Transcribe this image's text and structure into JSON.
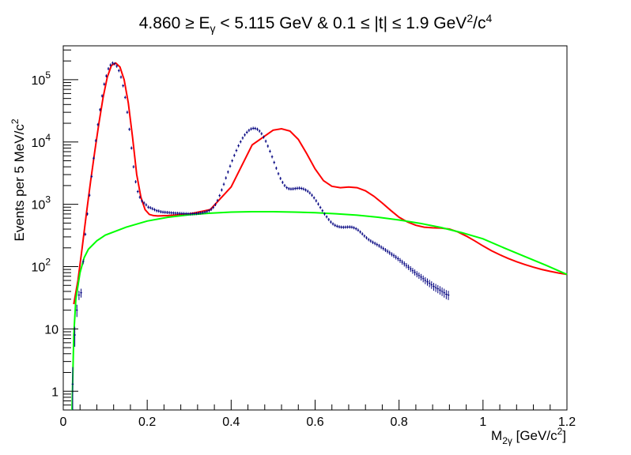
{
  "chart_data": {
    "type": "scatter",
    "title": "4.860 ≥ E_γ < 5.115 GeV  &  0.1 ≤ |t| ≤ 1.9 GeV²/c⁴",
    "title_parts": {
      "a": "4.860 ≥ E",
      "a_sub": "γ",
      "b": " < 5.115 GeV  &  0.1 ≤ |t| ≤ 1.9 GeV",
      "b_sup": "2",
      "c": "/c",
      "c_sup": "4"
    },
    "xlabel": "M_2γ [GeV/c²]",
    "xlabel_parts": {
      "a": "M",
      "a_sub": "2γ",
      "b": " [GeV/c",
      "b_sup": "2",
      "c": "]"
    },
    "ylabel": "Events per 5 MeV/c²",
    "ylabel_parts": {
      "a": "Events per 5 MeV/c",
      "a_sup": "2"
    },
    "xlim": [
      0,
      1.2
    ],
    "ylim": [
      0.5,
      350000
    ],
    "y_scale": "log",
    "x_ticks": [
      {
        "v": 0,
        "label": "0"
      },
      {
        "v": 0.2,
        "label": "0.2"
      },
      {
        "v": 0.4,
        "label": "0.4"
      },
      {
        "v": 0.6,
        "label": "0.6"
      },
      {
        "v": 0.8,
        "label": "0.8"
      },
      {
        "v": 1.0,
        "label": "1"
      },
      {
        "v": 1.2,
        "label": "1.2"
      }
    ],
    "y_ticks": [
      {
        "v": 1,
        "label": "1"
      },
      {
        "v": 10,
        "label": "10"
      },
      {
        "v": 100,
        "label": "10",
        "sup": "2"
      },
      {
        "v": 1000,
        "label": "10",
        "sup": "3"
      },
      {
        "v": 10000,
        "label": "10",
        "sup": "4"
      },
      {
        "v": 100000,
        "label": "10",
        "sup": "5"
      }
    ],
    "series": [
      {
        "type": "points-with-errors",
        "color": "#00007f",
        "points": [
          [
            0.0225,
            1.3
          ],
          [
            0.0275,
            8
          ],
          [
            0.0325,
            20
          ],
          [
            0.0375,
            35
          ],
          [
            0.0425,
            38
          ],
          [
            0.0475,
            120
          ],
          [
            0.0525,
            330
          ],
          [
            0.0575,
            700
          ],
          [
            0.0625,
            1400
          ],
          [
            0.0675,
            2800
          ],
          [
            0.0725,
            5500
          ],
          [
            0.0775,
            10500
          ],
          [
            0.0825,
            19000
          ],
          [
            0.0875,
            33000
          ],
          [
            0.0925,
            55000
          ],
          [
            0.0975,
            85000
          ],
          [
            0.1025,
            115000
          ],
          [
            0.1075,
            150000
          ],
          [
            0.1125,
            172000
          ],
          [
            0.1175,
            185000
          ],
          [
            0.1225,
            180000
          ],
          [
            0.1275,
            165000
          ],
          [
            0.1325,
            140000
          ],
          [
            0.1375,
            110000
          ],
          [
            0.1425,
            80000
          ],
          [
            0.1475,
            52000
          ],
          [
            0.1525,
            30000
          ],
          [
            0.1575,
            16000
          ],
          [
            0.1625,
            8000
          ],
          [
            0.1675,
            4000
          ],
          [
            0.1725,
            2300
          ],
          [
            0.1775,
            1600
          ],
          [
            0.1825,
            1300
          ],
          [
            0.1875,
            1130
          ],
          [
            0.1925,
            1050
          ],
          [
            0.1975,
            980
          ],
          [
            0.2025,
            900
          ],
          [
            0.2075,
            880
          ],
          [
            0.2125,
            850
          ],
          [
            0.2175,
            820
          ],
          [
            0.2225,
            790
          ],
          [
            0.2275,
            780
          ],
          [
            0.2325,
            760
          ],
          [
            0.2375,
            750
          ],
          [
            0.2425,
            745
          ],
          [
            0.2475,
            740
          ],
          [
            0.2525,
            735
          ],
          [
            0.2575,
            730
          ],
          [
            0.2625,
            725
          ],
          [
            0.2675,
            720
          ],
          [
            0.2725,
            718
          ],
          [
            0.2775,
            715
          ],
          [
            0.2825,
            712
          ],
          [
            0.2875,
            710
          ],
          [
            0.2925,
            708
          ],
          [
            0.2975,
            705
          ],
          [
            0.3025,
            702
          ],
          [
            0.3075,
            705
          ],
          [
            0.3125,
            708
          ],
          [
            0.3175,
            712
          ],
          [
            0.3225,
            718
          ],
          [
            0.3275,
            725
          ],
          [
            0.3325,
            735
          ],
          [
            0.3375,
            748
          ],
          [
            0.3425,
            765
          ],
          [
            0.3475,
            790
          ],
          [
            0.3525,
            830
          ],
          [
            0.3575,
            890
          ],
          [
            0.3625,
            990
          ],
          [
            0.3675,
            1150
          ],
          [
            0.3725,
            1380
          ],
          [
            0.3775,
            1700
          ],
          [
            0.3825,
            2100
          ],
          [
            0.3875,
            2650
          ],
          [
            0.3925,
            3300
          ],
          [
            0.3975,
            4100
          ],
          [
            0.4025,
            5000
          ],
          [
            0.4075,
            6100
          ],
          [
            0.4125,
            7300
          ],
          [
            0.4175,
            8700
          ],
          [
            0.4225,
            10100
          ],
          [
            0.4275,
            11600
          ],
          [
            0.4325,
            13000
          ],
          [
            0.4375,
            14300
          ],
          [
            0.4425,
            15400
          ],
          [
            0.4475,
            16200
          ],
          [
            0.4525,
            16600
          ],
          [
            0.4575,
            16500
          ],
          [
            0.4625,
            16000
          ],
          [
            0.4675,
            15000
          ],
          [
            0.4725,
            13600
          ],
          [
            0.4775,
            12000
          ],
          [
            0.4825,
            10300
          ],
          [
            0.4875,
            8600
          ],
          [
            0.4925,
            7100
          ],
          [
            0.4975,
            5800
          ],
          [
            0.5025,
            4700
          ],
          [
            0.5075,
            3800
          ],
          [
            0.5125,
            3100
          ],
          [
            0.5175,
            2600
          ],
          [
            0.5225,
            2250
          ],
          [
            0.5275,
            2000
          ],
          [
            0.5325,
            1850
          ],
          [
            0.5375,
            1780
          ],
          [
            0.5425,
            1760
          ],
          [
            0.5475,
            1770
          ],
          [
            0.5525,
            1790
          ],
          [
            0.5575,
            1810
          ],
          [
            0.5625,
            1820
          ],
          [
            0.5675,
            1800
          ],
          [
            0.5725,
            1760
          ],
          [
            0.5775,
            1700
          ],
          [
            0.5825,
            1620
          ],
          [
            0.5875,
            1520
          ],
          [
            0.5925,
            1400
          ],
          [
            0.5975,
            1270
          ],
          [
            0.6025,
            1140
          ],
          [
            0.6075,
            1010
          ],
          [
            0.6125,
            890
          ],
          [
            0.6175,
            790
          ],
          [
            0.6225,
            700
          ],
          [
            0.6275,
            630
          ],
          [
            0.6325,
            570
          ],
          [
            0.6375,
            520
          ],
          [
            0.6425,
            485
          ],
          [
            0.6475,
            460
          ],
          [
            0.6525,
            445
          ],
          [
            0.6575,
            435
          ],
          [
            0.6625,
            430
          ],
          [
            0.6675,
            428
          ],
          [
            0.6725,
            430
          ],
          [
            0.6775,
            432
          ],
          [
            0.6825,
            433
          ],
          [
            0.6875,
            430
          ],
          [
            0.6925,
            420
          ],
          [
            0.6975,
            405
          ],
          [
            0.7025,
            385
          ],
          [
            0.7075,
            360
          ],
          [
            0.7125,
            335
          ],
          [
            0.7175,
            310
          ],
          [
            0.7225,
            290
          ],
          [
            0.7275,
            272
          ],
          [
            0.7325,
            258
          ],
          [
            0.7375,
            246
          ],
          [
            0.7425,
            236
          ],
          [
            0.7475,
            226
          ],
          [
            0.7525,
            216
          ],
          [
            0.7575,
            205
          ],
          [
            0.7625,
            195
          ],
          [
            0.7675,
            185
          ],
          [
            0.7725,
            176
          ],
          [
            0.7775,
            167
          ],
          [
            0.7825,
            158
          ],
          [
            0.7875,
            150
          ],
          [
            0.7925,
            142
          ],
          [
            0.7975,
            134
          ],
          [
            0.8025,
            126
          ],
          [
            0.8075,
            118
          ],
          [
            0.8125,
            111
          ],
          [
            0.8175,
            104
          ],
          [
            0.8225,
            98
          ],
          [
            0.8275,
            92
          ],
          [
            0.8325,
            86
          ],
          [
            0.8375,
            81
          ],
          [
            0.8425,
            76
          ],
          [
            0.8475,
            72
          ],
          [
            0.8525,
            68
          ],
          [
            0.8575,
            64
          ],
          [
            0.8625,
            60
          ],
          [
            0.8675,
            57
          ],
          [
            0.8725,
            54
          ],
          [
            0.8775,
            51
          ],
          [
            0.8825,
            48
          ],
          [
            0.8875,
            46
          ],
          [
            0.8925,
            44
          ],
          [
            0.8975,
            42
          ],
          [
            0.9025,
            40
          ],
          [
            0.9075,
            38
          ],
          [
            0.9125,
            36
          ],
          [
            0.9175,
            35
          ]
        ]
      },
      {
        "name": "total fit",
        "type": "curve",
        "color": "#ff0000",
        "points": [
          [
            0.025,
            25
          ],
          [
            0.035,
            60
          ],
          [
            0.045,
            200
          ],
          [
            0.055,
            700
          ],
          [
            0.065,
            2300
          ],
          [
            0.075,
            7000
          ],
          [
            0.085,
            20000
          ],
          [
            0.095,
            52000
          ],
          [
            0.105,
            110000
          ],
          [
            0.115,
            170000
          ],
          [
            0.125,
            185000
          ],
          [
            0.135,
            160000
          ],
          [
            0.145,
            100000
          ],
          [
            0.155,
            42000
          ],
          [
            0.165,
            12000
          ],
          [
            0.175,
            3000
          ],
          [
            0.185,
            1300
          ],
          [
            0.195,
            820
          ],
          [
            0.205,
            690
          ],
          [
            0.215,
            660
          ],
          [
            0.225,
            650
          ],
          [
            0.25,
            660
          ],
          [
            0.3,
            700
          ],
          [
            0.35,
            820
          ],
          [
            0.4,
            1900
          ],
          [
            0.45,
            9000
          ],
          [
            0.5,
            15500
          ],
          [
            0.52,
            16300
          ],
          [
            0.54,
            15000
          ],
          [
            0.56,
            11000
          ],
          [
            0.58,
            6500
          ],
          [
            0.6,
            3700
          ],
          [
            0.62,
            2400
          ],
          [
            0.64,
            1950
          ],
          [
            0.66,
            1850
          ],
          [
            0.68,
            1900
          ],
          [
            0.7,
            1850
          ],
          [
            0.72,
            1650
          ],
          [
            0.74,
            1350
          ],
          [
            0.76,
            1050
          ],
          [
            0.78,
            800
          ],
          [
            0.8,
            620
          ],
          [
            0.82,
            520
          ],
          [
            0.84,
            460
          ],
          [
            0.86,
            430
          ],
          [
            0.88,
            420
          ],
          [
            0.9,
            415
          ],
          [
            0.92,
            400
          ],
          [
            0.94,
            360
          ],
          [
            0.96,
            310
          ],
          [
            0.98,
            260
          ],
          [
            1.0,
            215
          ],
          [
            1.02,
            180
          ],
          [
            1.04,
            155
          ],
          [
            1.06,
            135
          ],
          [
            1.08,
            120
          ],
          [
            1.1,
            108
          ],
          [
            1.12,
            98
          ],
          [
            1.14,
            90
          ],
          [
            1.16,
            84
          ],
          [
            1.18,
            79
          ],
          [
            1.2,
            75
          ]
        ]
      },
      {
        "name": "background",
        "type": "curve",
        "color": "#00ff00",
        "points": [
          [
            0.021,
            0.5
          ],
          [
            0.023,
            2
          ],
          [
            0.025,
            8
          ],
          [
            0.03,
            30
          ],
          [
            0.04,
            80
          ],
          [
            0.05,
            140
          ],
          [
            0.06,
            190
          ],
          [
            0.08,
            260
          ],
          [
            0.1,
            320
          ],
          [
            0.15,
            430
          ],
          [
            0.2,
            540
          ],
          [
            0.25,
            620
          ],
          [
            0.3,
            680
          ],
          [
            0.35,
            720
          ],
          [
            0.4,
            750
          ],
          [
            0.45,
            760
          ],
          [
            0.5,
            760
          ],
          [
            0.55,
            750
          ],
          [
            0.6,
            735
          ],
          [
            0.65,
            705
          ],
          [
            0.7,
            670
          ],
          [
            0.75,
            620
          ],
          [
            0.8,
            560
          ],
          [
            0.85,
            495
          ],
          [
            0.9,
            425
          ],
          [
            0.95,
            350
          ],
          [
            1.0,
            280
          ],
          [
            1.05,
            200
          ],
          [
            1.1,
            145
          ],
          [
            1.15,
            105
          ],
          [
            1.2,
            75
          ]
        ]
      }
    ],
    "grid": false,
    "legend": "none"
  }
}
